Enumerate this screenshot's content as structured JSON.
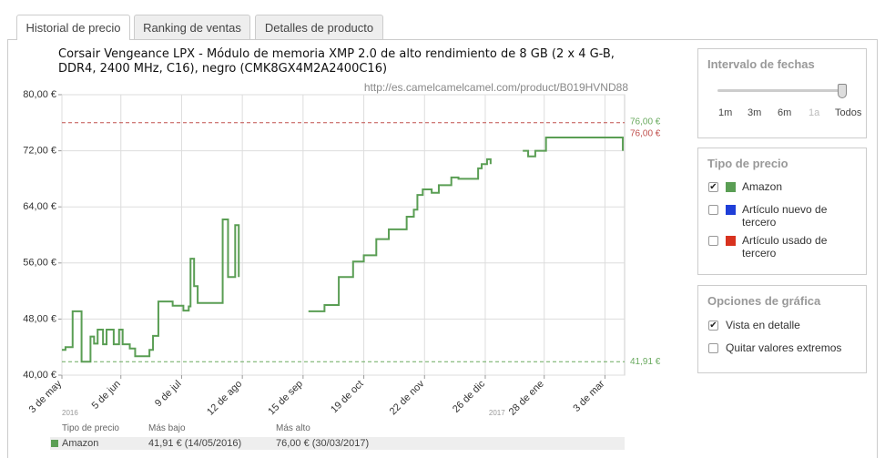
{
  "tabs": [
    {
      "label": "Historial de precio",
      "active": true
    },
    {
      "label": "Ranking de ventas",
      "active": false
    },
    {
      "label": "Detalles de producto",
      "active": false
    }
  ],
  "chart_data": {
    "type": "line",
    "title": "Corsair Vengeance LPX - Módulo de memoria XMP 2.0 de alto rendimiento de 8 GB (2 x 4 G-B, DDR4, 2400 MHz, C16), negro (CMK8GX4M2A2400C16)",
    "subtitle": "http://es.camelcamelcamel.com/product/B019HVND88",
    "x": [
      "2016-05-03",
      "2016-05-05",
      "2016-05-09",
      "2016-05-14",
      "2016-05-19",
      "2016-05-21",
      "2016-05-23",
      "2016-05-26",
      "2016-05-28",
      "2016-06-01",
      "2016-06-04",
      "2016-06-06",
      "2016-06-10",
      "2016-06-13",
      "2016-06-21",
      "2016-06-23",
      "2016-06-26",
      "2016-07-04",
      "2016-07-10",
      "2016-07-13",
      "2016-07-14",
      "2016-07-16",
      "2016-07-18",
      "2016-08-01",
      "2016-08-04",
      "2016-08-08",
      "2016-08-10",
      "2016-08-29",
      "2016-09-18",
      "2016-09-27",
      "2016-10-05",
      "2016-10-13",
      "2016-10-19",
      "2016-10-26",
      "2016-11-02",
      "2016-11-12",
      "2016-11-16",
      "2016-11-18",
      "2016-11-21",
      "2016-11-26",
      "2016-11-30",
      "2016-12-07",
      "2016-12-11",
      "2016-12-22",
      "2016-12-24",
      "2016-12-27",
      "2016-12-29",
      "2017-01-07",
      "2017-01-16",
      "2017-01-19",
      "2017-01-23",
      "2017-01-29",
      "2017-03-12",
      "2017-03-13"
    ],
    "series": [
      {
        "name": "Amazon",
        "color": "#5a9e54",
        "values": [
          43.6,
          44,
          49.1,
          41.91,
          45.5,
          44.5,
          46.5,
          44.4,
          46.5,
          44.4,
          46.5,
          44.4,
          43.8,
          42.7,
          43.6,
          45.6,
          50.5,
          49.9,
          49.2,
          49.8,
          56.6,
          52.7,
          50.3,
          62.2,
          54,
          61.4,
          54,
          null,
          49.1,
          50,
          54,
          56.2,
          57.1,
          59.4,
          60.8,
          62.6,
          63.6,
          65.7,
          66.5,
          66,
          67.1,
          68.2,
          68,
          69.5,
          70.1,
          70.8,
          70.1,
          null,
          72,
          71.2,
          72,
          73.9,
          73.9,
          72
        ]
      }
    ],
    "xlim": [
      "2016-05-03",
      "2017-03-14"
    ],
    "xticks": [
      {
        "value": "2016-05-03",
        "label": "3 de may"
      },
      {
        "value": "2016-06-05",
        "label": "5 de jun"
      },
      {
        "value": "2016-07-09",
        "label": "9 de jul"
      },
      {
        "value": "2016-08-12",
        "label": "12 de ago"
      },
      {
        "value": "2016-09-15",
        "label": "15 de sep"
      },
      {
        "value": "2016-10-19",
        "label": "19 de oct"
      },
      {
        "value": "2016-11-22",
        "label": "22 de nov"
      },
      {
        "value": "2016-12-26",
        "label": "26 de dic"
      },
      {
        "value": "2017-01-28",
        "label": "28 de ene"
      },
      {
        "value": "2017-03-03",
        "label": "3 de mar"
      }
    ],
    "year_labels": [
      {
        "x": "2016-05-03",
        "label": "2016"
      },
      {
        "x": "2016-12-28",
        "label": "2017"
      }
    ],
    "ylim": [
      40,
      80
    ],
    "yticks": [
      {
        "value": 40,
        "label": "40,00 €"
      },
      {
        "value": 48,
        "label": "48,00 €"
      },
      {
        "value": 56,
        "label": "56,00 €"
      },
      {
        "value": 64,
        "label": "64,00 €"
      },
      {
        "value": 72,
        "label": "72,00 €"
      },
      {
        "value": 80,
        "label": "80,00 €"
      }
    ],
    "grid": true,
    "reference_lines": [
      {
        "value": 76,
        "label": "76,00 €",
        "color": "#c0504d"
      },
      {
        "value": 41.91,
        "label": "41,91 €",
        "color": "#6aaa5f"
      }
    ],
    "annotations": [
      {
        "value": 76,
        "label": "76,00 €",
        "color": "#6aaa5f"
      }
    ]
  },
  "sidebar": {
    "date_range": {
      "title": "Intervalo de fechas",
      "options": [
        "1m",
        "3m",
        "6m",
        "1a",
        "Todos"
      ]
    },
    "price_type": {
      "title": "Tipo de precio",
      "items": [
        {
          "label": "Amazon",
          "color": "#5a9e54",
          "checked": true
        },
        {
          "label": "Artículo nuevo de tercero",
          "color": "#1f3fd8",
          "checked": false
        },
        {
          "label": "Artículo usado de tercero",
          "color": "#d8321f",
          "checked": false
        }
      ]
    },
    "chart_options": {
      "title": "Opciones de gráfica",
      "items": [
        {
          "label": "Vista en detalle",
          "checked": true
        },
        {
          "label": "Quitar valores extremos",
          "checked": false
        }
      ]
    }
  },
  "summary_table": {
    "headers": [
      "Tipo de precio",
      "Más bajo",
      "Más alto"
    ],
    "rows": [
      [
        "Amazon",
        "41,91 € (14/05/2016)",
        "76,00 € (30/03/2017)"
      ]
    ]
  }
}
